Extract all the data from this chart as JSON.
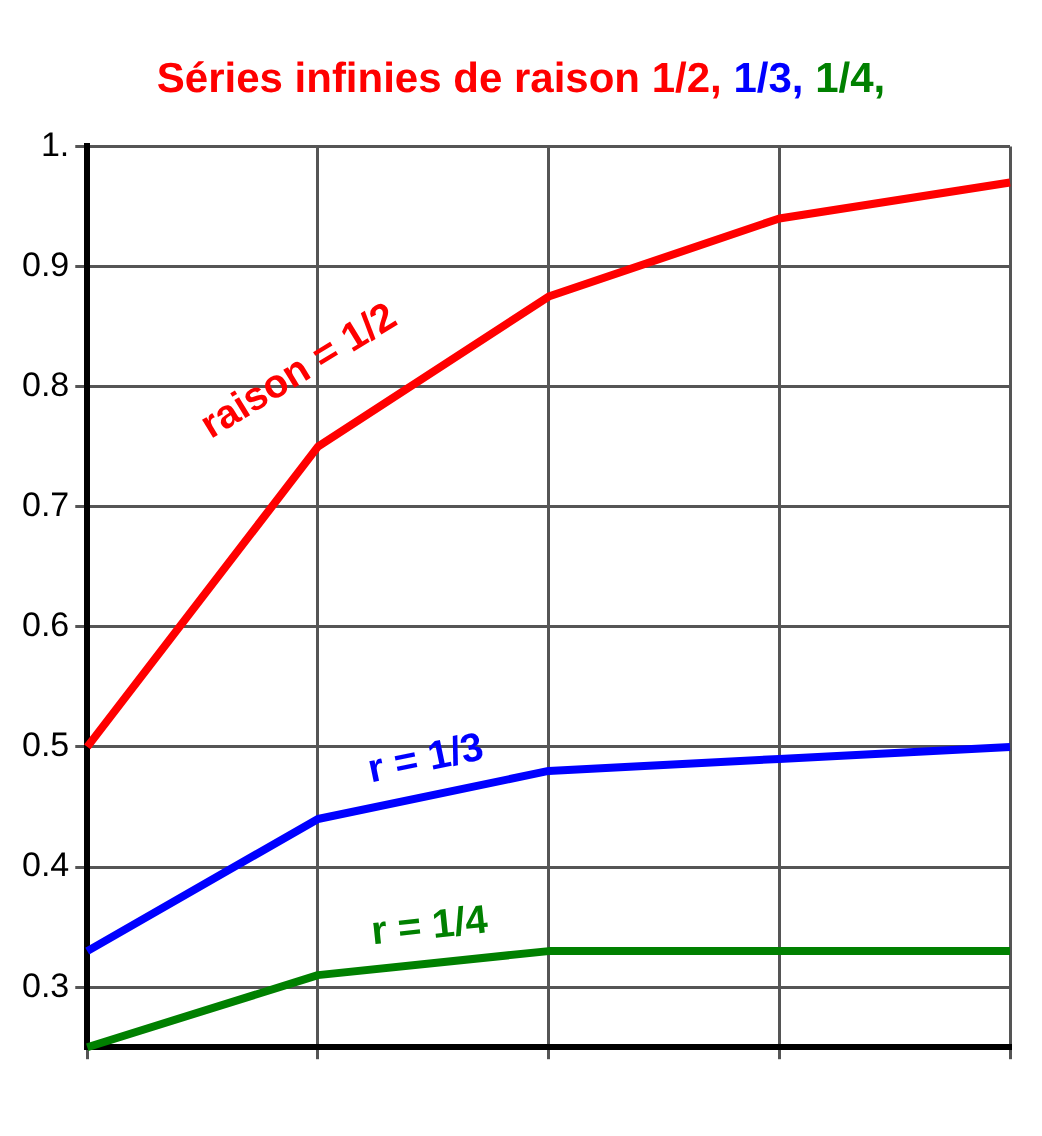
{
  "chart_data": {
    "type": "line",
    "title": "Séries infinies de raison 1/2, 1/3, 1/4,",
    "categories": [
      null,
      null,
      null,
      null,
      null
    ],
    "series": [
      {
        "name": "raison = 1/2",
        "color": "#ff0000",
        "values": [
          0.5,
          0.75,
          0.875,
          0.94,
          0.97
        ]
      },
      {
        "name": "r = 1/3",
        "color": "#0000ff",
        "values": [
          0.33,
          0.44,
          0.48,
          0.49,
          0.5
        ]
      },
      {
        "name": "r = 1/4",
        "color": "#008000",
        "values": [
          0.25,
          0.31,
          0.33,
          0.33,
          0.33
        ]
      }
    ],
    "ylim": [
      0.25,
      1
    ],
    "yticks": [
      0.3,
      0.4,
      0.5,
      0.6,
      0.7,
      0.8,
      0.9,
      {
        "value": 1,
        "label": "1."
      }
    ],
    "grid": true,
    "legend": false,
    "marker": "none",
    "line_style": "solid"
  }
}
